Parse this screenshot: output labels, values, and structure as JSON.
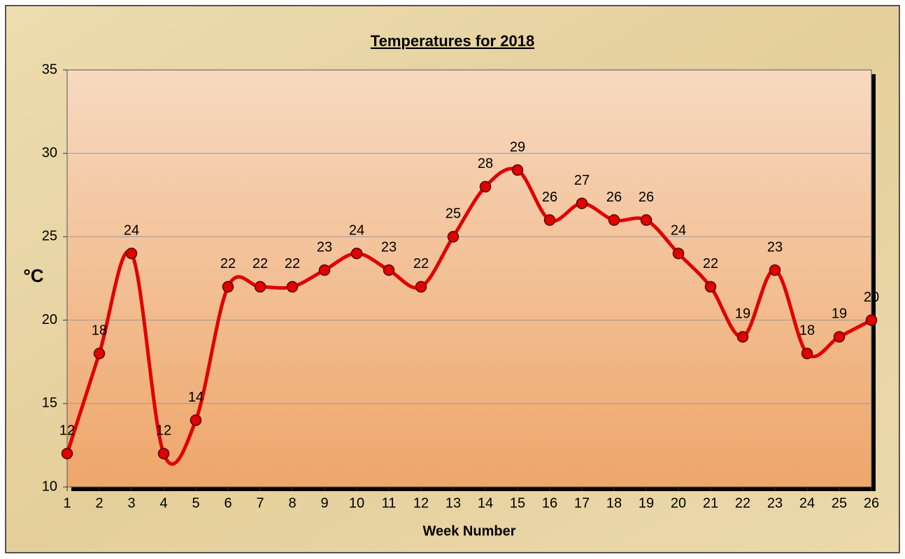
{
  "chart_data": {
    "type": "line",
    "title": "Temperatures for 2018",
    "x_label": "Week Number",
    "y_label": "°C",
    "x": [
      1,
      2,
      3,
      4,
      5,
      6,
      7,
      8,
      9,
      10,
      11,
      12,
      13,
      14,
      15,
      16,
      17,
      18,
      19,
      20,
      21,
      22,
      23,
      24,
      25,
      26
    ],
    "xlim": [
      1,
      26
    ],
    "xticks": [
      1,
      2,
      3,
      4,
      5,
      6,
      7,
      8,
      9,
      10,
      11,
      12,
      13,
      14,
      15,
      16,
      17,
      18,
      19,
      20,
      21,
      22,
      23,
      24,
      25,
      26
    ],
    "series": [
      {
        "color": "#e00000",
        "values": [
          12,
          18,
          24,
          12,
          14,
          22,
          22,
          22,
          23,
          24,
          23,
          22,
          25,
          28,
          29,
          26,
          27,
          26,
          26,
          24,
          22,
          19,
          23,
          18,
          19,
          20
        ]
      }
    ],
    "ylim": [
      10,
      35
    ],
    "yticks": [
      10,
      15,
      20,
      25,
      30,
      35
    ],
    "grid": true,
    "smooth": true
  }
}
